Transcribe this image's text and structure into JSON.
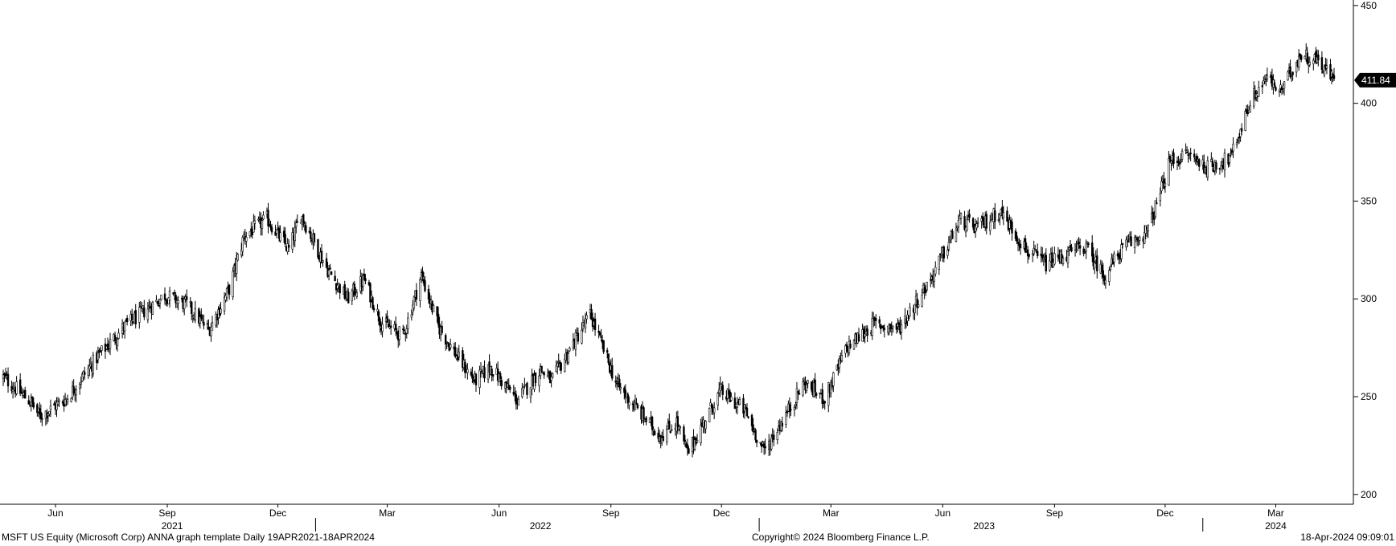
{
  "chart_data": {
    "type": "candlestick",
    "title": "",
    "xlabel": "",
    "ylabel": "",
    "x_range": [
      "2021-04-19",
      "2024-04-18"
    ],
    "ylim": [
      195,
      452
    ],
    "y_ticks": [
      200,
      250,
      300,
      350,
      400,
      450
    ],
    "x_month_ticks": [
      {
        "date": "2021-06-01",
        "label": "Jun"
      },
      {
        "date": "2021-09-01",
        "label": "Sep"
      },
      {
        "date": "2021-12-01",
        "label": "Dec"
      },
      {
        "date": "2022-03-01",
        "label": "Mar"
      },
      {
        "date": "2022-06-01",
        "label": "Jun"
      },
      {
        "date": "2022-09-01",
        "label": "Sep"
      },
      {
        "date": "2022-12-01",
        "label": "Dec"
      },
      {
        "date": "2023-03-01",
        "label": "Mar"
      },
      {
        "date": "2023-06-01",
        "label": "Jun"
      },
      {
        "date": "2023-09-01",
        "label": "Sep"
      },
      {
        "date": "2023-12-01",
        "label": "Dec"
      },
      {
        "date": "2024-03-01",
        "label": "Mar"
      }
    ],
    "year_labels": [
      {
        "label": "2021",
        "date": "2021-09-05"
      },
      {
        "label": "2022",
        "date": "2022-07-05"
      },
      {
        "label": "2023",
        "date": "2023-07-05"
      },
      {
        "label": "2024",
        "date": "2024-03-01"
      }
    ],
    "year_boundaries": [
      "2022-01-01",
      "2023-01-01",
      "2024-01-01"
    ],
    "grid": false,
    "last_value": 411.84,
    "last_value_label": "411.84",
    "series": [
      {
        "x": [
          "2021-04-19",
          "2021-05-12",
          "2021-05-19",
          "2021-06-10",
          "2021-07-05",
          "2021-07-28",
          "2021-08-30",
          "2021-09-17",
          "2021-10-05",
          "2021-10-22",
          "2021-11-03",
          "2021-11-22",
          "2021-12-10",
          "2021-12-20",
          "2022-01-10",
          "2022-01-27",
          "2022-02-10",
          "2022-02-24",
          "2022-03-14",
          "2022-03-29",
          "2022-04-12",
          "2022-04-28",
          "2022-05-12",
          "2022-05-25",
          "2022-06-16",
          "2022-07-05",
          "2022-07-14",
          "2022-08-15",
          "2022-09-06",
          "2022-09-30",
          "2022-10-12",
          "2022-10-25",
          "2022-11-03",
          "2022-11-30",
          "2022-12-20",
          "2023-01-05",
          "2023-01-24",
          "2023-02-07",
          "2023-02-24",
          "2023-03-14",
          "2023-04-05",
          "2023-04-26",
          "2023-05-22",
          "2023-06-15",
          "2023-06-30",
          "2023-07-18",
          "2023-08-10",
          "2023-08-25",
          "2023-09-26",
          "2023-10-12",
          "2023-10-26",
          "2023-11-17",
          "2023-12-05",
          "2023-12-20",
          "2024-01-05",
          "2024-01-24",
          "2024-02-09",
          "2024-02-22",
          "2024-03-05",
          "2024-03-21",
          "2024-04-05",
          "2024-04-18"
        ],
        "y": [
          260,
          247,
          240,
          249,
          270,
          286,
          302,
          297,
          284,
          305,
          332,
          341,
          325,
          343,
          316,
          300,
          310,
          288,
          281,
          312,
          286,
          270,
          258,
          265,
          248,
          264,
          258,
          292,
          256,
          238,
          230,
          237,
          221,
          253,
          243,
          222,
          242,
          257,
          249,
          275,
          287,
          285,
          310,
          340,
          336,
          345,
          324,
          318,
          327,
          312,
          325,
          335,
          370,
          374,
          367,
          372,
          401,
          413,
          406,
          425,
          422,
          412
        ]
      }
    ]
  },
  "footer": {
    "left": "MSFT US Equity (Microsoft Corp) ANNA  graph template  Daily 19APR2021-18APR2024",
    "center": "Copyright© 2024 Bloomberg Finance L.P.",
    "right": "18-Apr-2024 09:09:01"
  }
}
